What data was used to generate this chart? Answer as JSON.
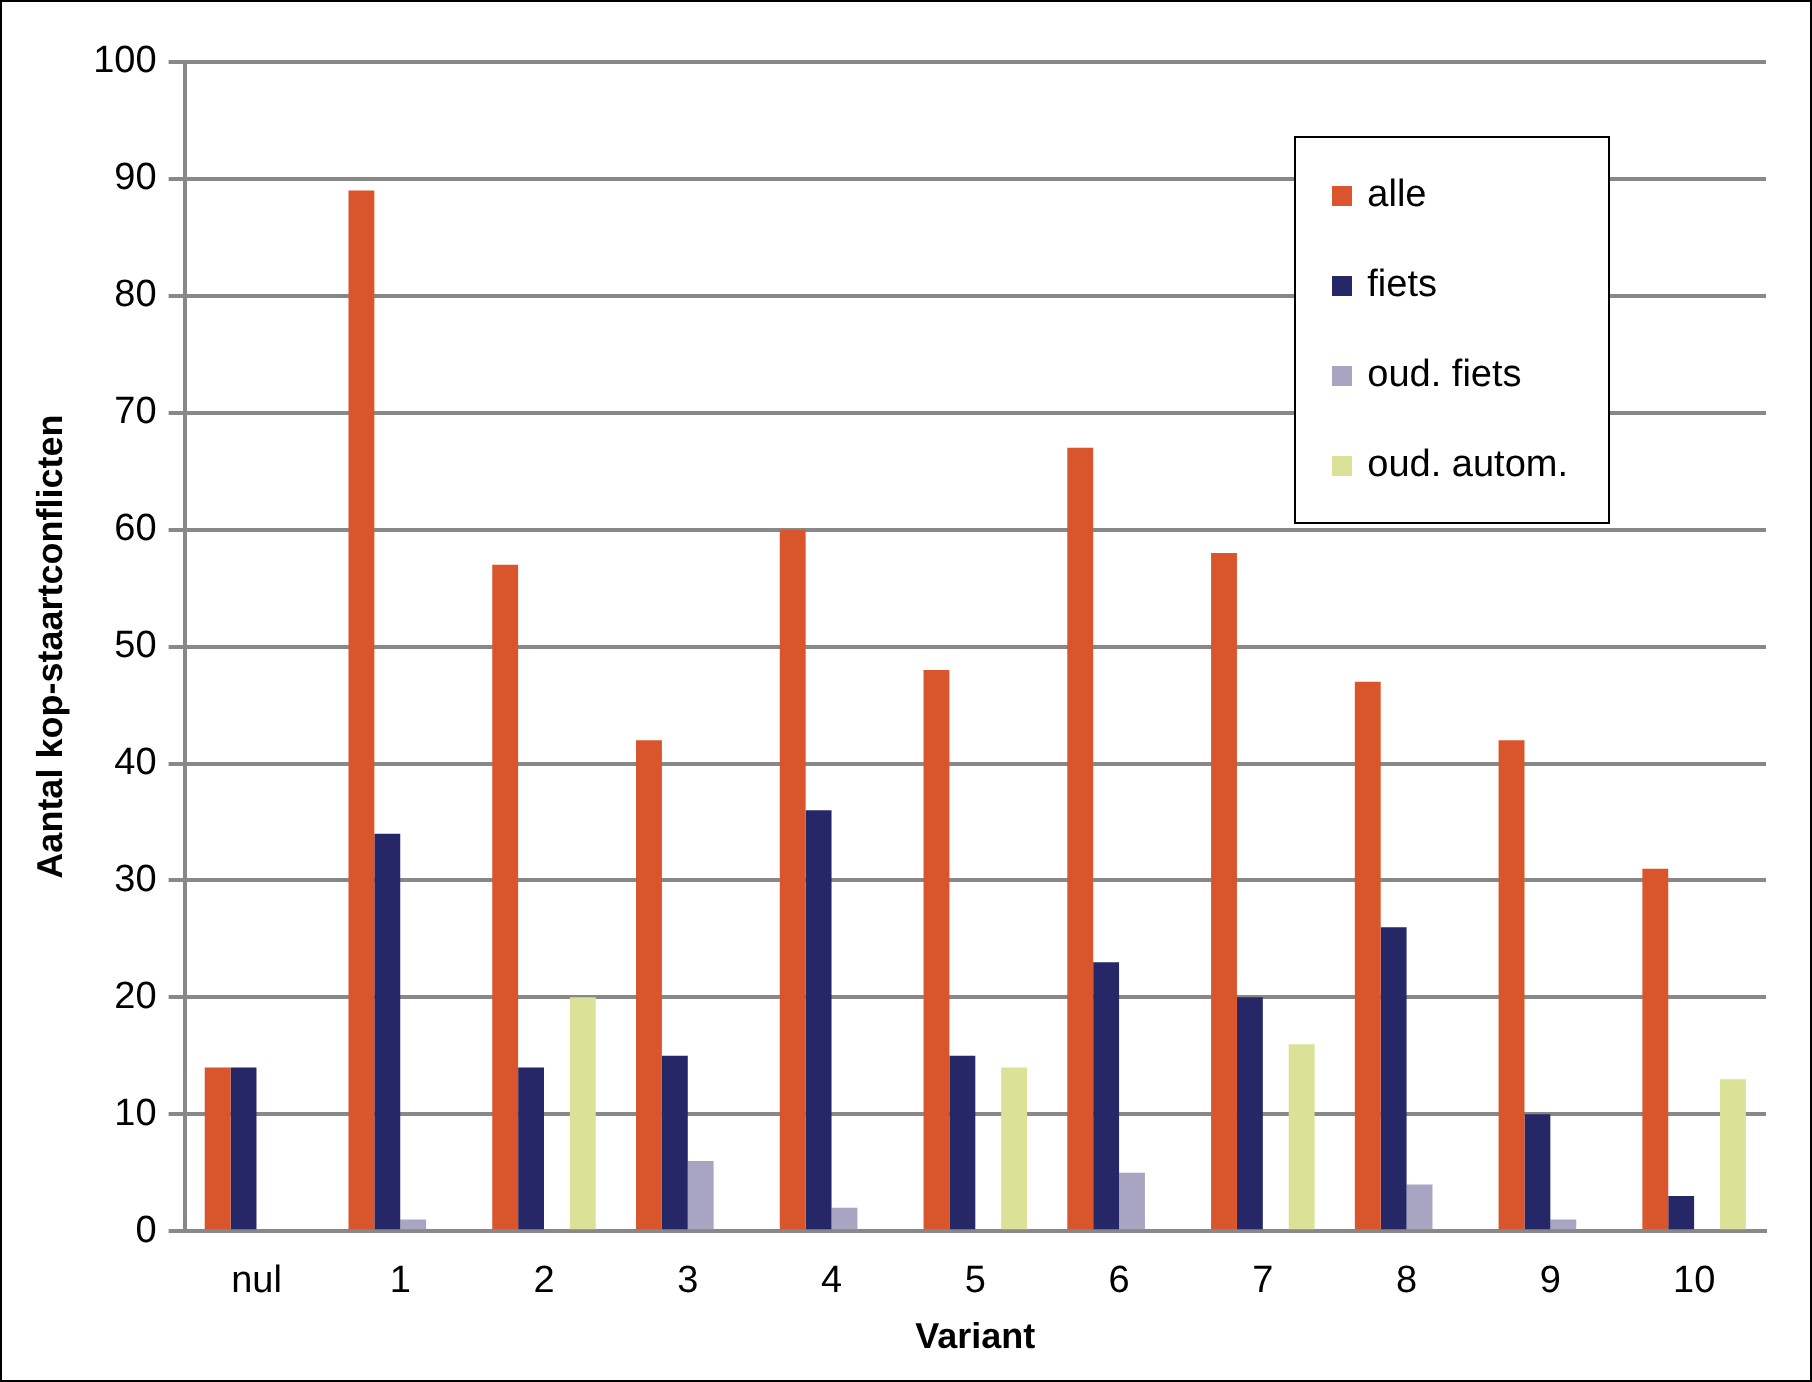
{
  "chart_data": {
    "type": "bar",
    "xlabel": "Variant",
    "ylabel": "Aantal kop-staartconflicten",
    "categories": [
      "nul",
      "1",
      "2",
      "3",
      "4",
      "5",
      "6",
      "7",
      "8",
      "9",
      "10"
    ],
    "series": [
      {
        "name": "alle",
        "color": "#d9552b",
        "values": [
          14,
          89,
          57,
          42,
          60,
          48,
          67,
          58,
          47,
          42,
          31
        ]
      },
      {
        "name": "fiets",
        "color": "#262766",
        "values": [
          14,
          34,
          14,
          15,
          36,
          15,
          23,
          20,
          26,
          10,
          3
        ]
      },
      {
        "name": "oud. fiets",
        "color": "#a8a5c2",
        "values": [
          0,
          1,
          0,
          6,
          2,
          0,
          5,
          0,
          4,
          1,
          0
        ]
      },
      {
        "name": "oud. autom.",
        "color": "#dbe196",
        "values": [
          0,
          0,
          20,
          0,
          0,
          14,
          0,
          16,
          0,
          0,
          13
        ]
      }
    ],
    "ylim": [
      0,
      100
    ],
    "yticks": [
      0,
      10,
      20,
      30,
      40,
      50,
      60,
      70,
      80,
      90,
      100
    ],
    "grid": "y",
    "legend": "top right"
  }
}
